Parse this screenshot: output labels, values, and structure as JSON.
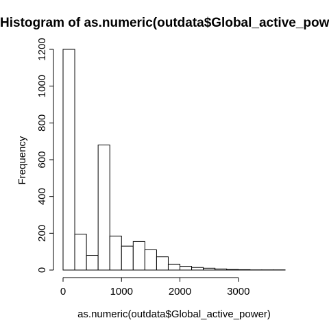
{
  "chart_data": {
    "type": "bar",
    "title": "Histogram of as.numeric(outdata$Global_active_power)",
    "xlabel": "as.numeric(outdata$Global_active_power)",
    "ylabel": "Frequency",
    "bin_edges": [
      0,
      200,
      400,
      600,
      800,
      1000,
      1200,
      1400,
      1600,
      1800,
      2000,
      2200,
      2400,
      2600,
      2800,
      3000,
      3200,
      3400,
      3600,
      3800
    ],
    "values": [
      1200,
      195,
      80,
      680,
      185,
      130,
      155,
      110,
      72,
      32,
      20,
      14,
      10,
      6,
      3,
      2,
      1,
      1,
      1
    ],
    "xticks": [
      0,
      1000,
      2000,
      3000
    ],
    "yticks": [
      0,
      200,
      400,
      600,
      800,
      1000,
      1200
    ],
    "xlim": [
      0,
      3800
    ],
    "ylim": [
      0,
      1200
    ],
    "grid": false,
    "legend": "none"
  }
}
